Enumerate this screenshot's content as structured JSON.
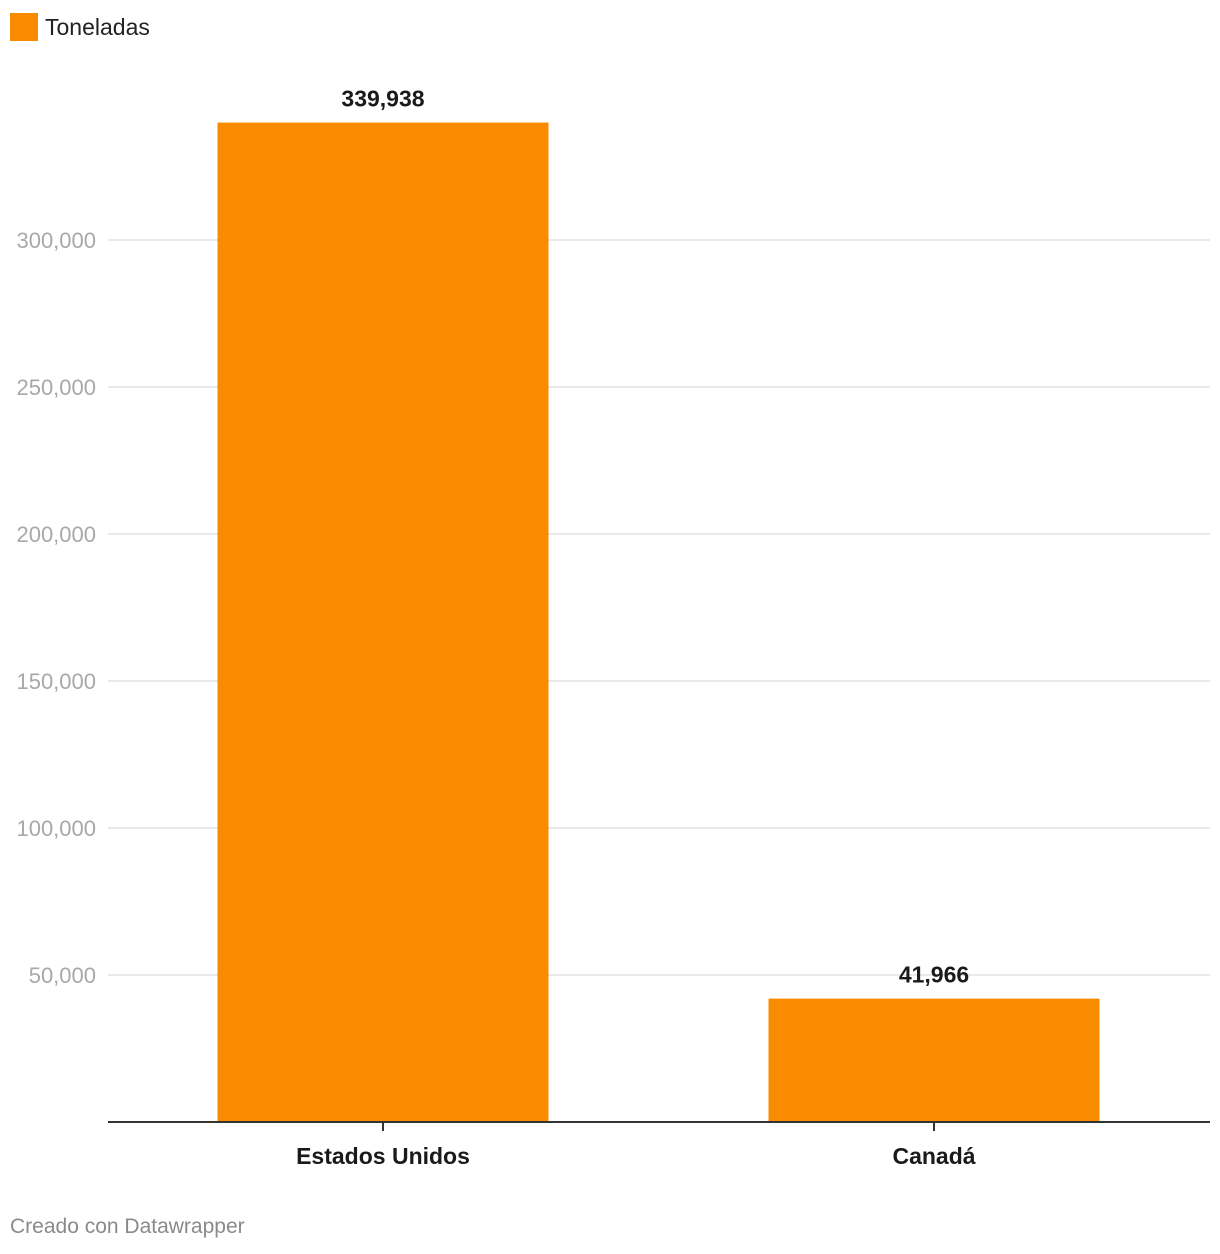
{
  "legend": {
    "label": "Toneladas",
    "color": "#f88b00"
  },
  "footer": {
    "credit": "Creado con Datawrapper"
  },
  "chart_data": {
    "type": "bar",
    "categories": [
      "Estados Unidos",
      "Canadá"
    ],
    "series": [
      {
        "name": "Toneladas",
        "values": [
          339938,
          41966
        ]
      }
    ],
    "value_labels": [
      "339,938",
      "41,966"
    ],
    "y_ticks": [
      50000,
      100000,
      150000,
      200000,
      250000,
      300000
    ],
    "y_tick_labels": [
      "50,000",
      "100,000",
      "150,000",
      "200,000",
      "250,000",
      "300,000"
    ],
    "ylim": [
      0,
      340000
    ],
    "grid": true,
    "legend_position": "top-left",
    "bar_color": "#f88b00",
    "title": "",
    "xlabel": "",
    "ylabel": ""
  }
}
